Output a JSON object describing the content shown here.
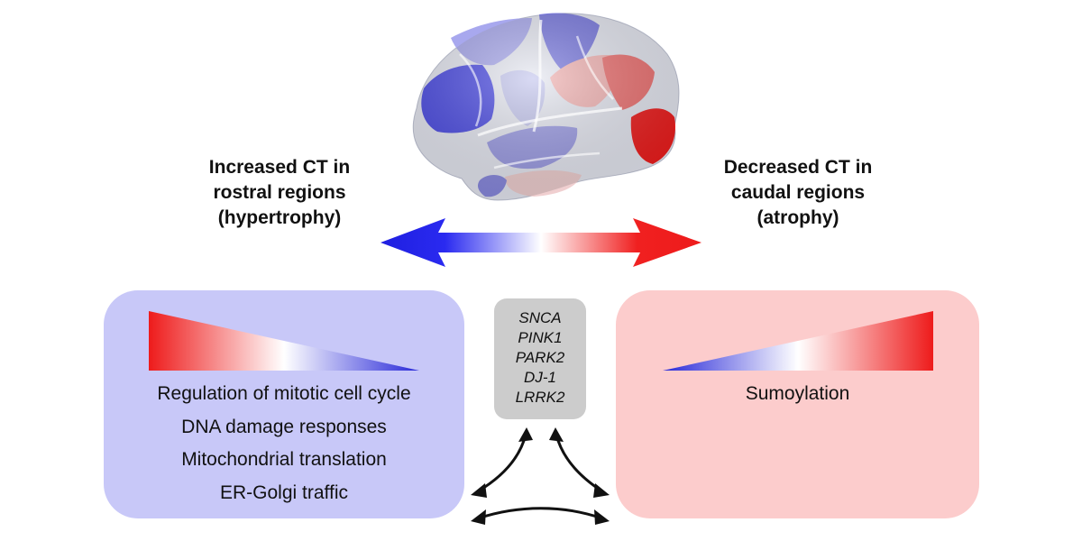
{
  "left_header": {
    "lines": [
      "Increased CT in",
      "rostral regions",
      "(hypertrophy)"
    ]
  },
  "right_header": {
    "lines": [
      "Decreased CT in",
      "caudal regions",
      "(atrophy)"
    ]
  },
  "left_panel": {
    "items": [
      "Regulation of mitotic cell cycle",
      "DNA damage responses",
      "Mitochondrial translation",
      "ER-Golgi traffic"
    ]
  },
  "right_panel": {
    "items": [
      "Sumoylation"
    ]
  },
  "genes": [
    "SNCA",
    "PINK1",
    "PARK2",
    "DJ-1",
    "LRRK2"
  ],
  "colors": {
    "blue": "#1f1fd9",
    "red": "#ee1b1b",
    "left_panel_bg": "#c8c8f8",
    "right_panel_bg": "#fccccc",
    "gene_box_bg": "#cccccc"
  }
}
